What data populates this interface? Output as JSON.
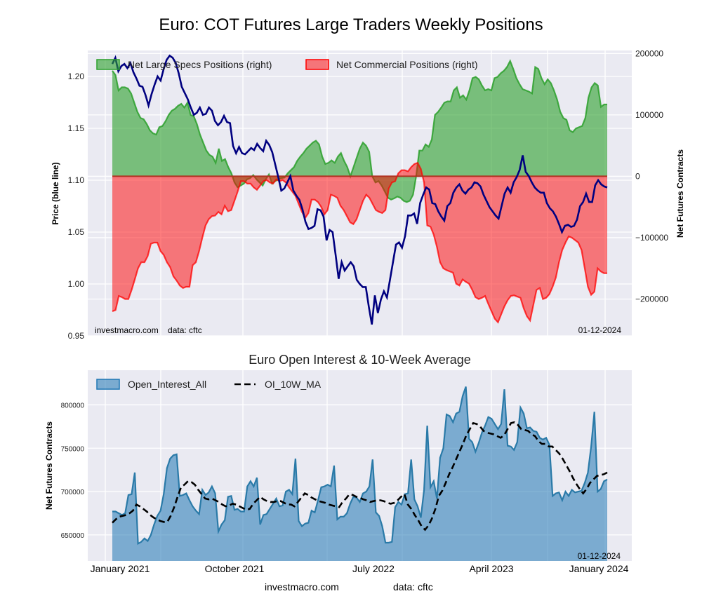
{
  "title": "Euro: COT Futures Large Traders Weekly Positions",
  "subtitle": "Euro Open Interest & 10-Week Average",
  "watermark_top": "investmacro.com    data: cftc",
  "date_top": "01-12-2024",
  "date_bottom": "01-12-2024",
  "footer_site": "investmacro.com",
  "footer_data": "data: cftc",
  "chart_data": [
    {
      "type": "area",
      "title": "Euro: COT Futures Large Traders Weekly Positions",
      "ylabel_left": "Price (blue line)",
      "ylabel_right": "Net Futures Contracts",
      "ylim_left": [
        0.95,
        1.225
      ],
      "ylim_right": [
        -260000,
        205000
      ],
      "yticks_left": [
        "0.95",
        "1.00",
        "1.05",
        "1.10",
        "1.15",
        "1.20"
      ],
      "yticks_right": [
        "−200000",
        "−100000",
        "0",
        "100000",
        "200000"
      ],
      "ytick_values_left": [
        0.95,
        1.0,
        1.05,
        1.1,
        1.15,
        1.2
      ],
      "ytick_values_right": [
        -200000,
        -100000,
        0,
        100000,
        200000
      ],
      "grid": true,
      "legend_position": "top",
      "colors": {
        "specs": "#2ca02c",
        "commercial": "#ff0000",
        "price": "#000080"
      },
      "legend": [
        "Net Large Specs Positions (right)",
        "Net Commercial Positions (right)"
      ],
      "x_start": "2021-01-05",
      "x_end": "2024-01-09",
      "x_step": "weekly",
      "series": [
        {
          "name": "Net Large Specs Positions (right)",
          "axis": "right",
          "values": [
            172000,
            165000,
            140000,
            145000,
            145000,
            143000,
            135000,
            120000,
            105000,
            95000,
            93000,
            85000,
            75000,
            70000,
            68000,
            80000,
            82000,
            90000,
            100000,
            107000,
            110000,
            115000,
            118000,
            112000,
            120000,
            100000,
            98000,
            85000,
            68000,
            55000,
            42000,
            35000,
            32000,
            22000,
            45000,
            25000,
            28000,
            15000,
            5000,
            -10000,
            -18000,
            -15000,
            -12000,
            -5000,
            -3000,
            2000,
            -5000,
            -10000,
            -15000,
            -5000,
            3000,
            -12000,
            -8000,
            -5000,
            -3000,
            -2000,
            5000,
            10000,
            15000,
            25000,
            32000,
            38000,
            45000,
            50000,
            55000,
            58000,
            52000,
            32000,
            20000,
            22000,
            26000,
            22000,
            32000,
            38000,
            25000,
            15000,
            0,
            15000,
            30000,
            45000,
            55000,
            50000,
            40000,
            0,
            -10000,
            -8000,
            -15000,
            -25000,
            -35000,
            -38000,
            -36000,
            -33000,
            -35000,
            -40000,
            -42000,
            -40000,
            -30000,
            0,
            42000,
            42000,
            52000,
            48000,
            60000,
            100000,
            105000,
            112000,
            120000,
            122000,
            122000,
            140000,
            145000,
            128000,
            132000,
            125000,
            140000,
            160000,
            162000,
            158000,
            148000,
            140000,
            142000,
            140000,
            160000,
            162000,
            168000,
            172000,
            178000,
            188000,
            175000,
            160000,
            150000,
            142000,
            140000,
            138000,
            135000,
            178000,
            175000,
            160000,
            150000,
            158000,
            152000,
            140000,
            125000,
            105000,
            95000,
            92000,
            75000,
            72000,
            78000,
            80000,
            82000,
            95000,
            128000,
            145000,
            152000,
            148000,
            113000,
            117000,
            117000
          ]
        },
        {
          "name": "Net Commercial Positions (right)",
          "axis": "right",
          "values": [
            -220000,
            -218000,
            -195000,
            -197000,
            -200000,
            -200000,
            -185000,
            -168000,
            -150000,
            -140000,
            -140000,
            -130000,
            -110000,
            -108000,
            -108000,
            -122000,
            -128000,
            -140000,
            -148000,
            -163000,
            -170000,
            -178000,
            -182000,
            -180000,
            -180000,
            -145000,
            -140000,
            -122000,
            -100000,
            -80000,
            -70000,
            -65000,
            -64000,
            -58000,
            -62000,
            -48000,
            -57000,
            -55000,
            -40000,
            -25000,
            -8000,
            -8000,
            -12000,
            -12000,
            -18000,
            -22000,
            -15000,
            -8000,
            -6000,
            -10000,
            -12000,
            -5000,
            -8000,
            -6000,
            -10000,
            -18000,
            -25000,
            -32000,
            -45000,
            -58000,
            -68000,
            -60000,
            -38000,
            -38000,
            -42000,
            -50000,
            -62000,
            -55000,
            -30000,
            -32000,
            -35000,
            -48000,
            -55000,
            -65000,
            -75000,
            -78000,
            -70000,
            -55000,
            -40000,
            -30000,
            -35000,
            -45000,
            -55000,
            -58000,
            -60000,
            -55000,
            -20000,
            -10000,
            -8000,
            5000,
            10000,
            10000,
            8000,
            15000,
            20000,
            22000,
            12000,
            -10000,
            -80000,
            -82000,
            -95000,
            -115000,
            -140000,
            -150000,
            -153000,
            -155000,
            -157000,
            -175000,
            -178000,
            -168000,
            -172000,
            -175000,
            -185000,
            -197000,
            -200000,
            -198000,
            -195000,
            -208000,
            -220000,
            -232000,
            -238000,
            -225000,
            -212000,
            -202000,
            -195000,
            -194000,
            -196000,
            -198000,
            -215000,
            -228000,
            -235000,
            -210000,
            -185000,
            -182000,
            -200000,
            -198000,
            -192000,
            -180000,
            -165000,
            -140000,
            -120000,
            -108000,
            -98000,
            -100000,
            -104000,
            -108000,
            -120000,
            -150000,
            -180000,
            -193000,
            -188000,
            -150000,
            -155000,
            -158000,
            -158000
          ]
        },
        {
          "name": "Price (blue line)",
          "axis": "left",
          "values": [
            1.212,
            1.218,
            1.205,
            1.21,
            1.212,
            1.208,
            1.213,
            1.204,
            1.198,
            1.191,
            1.19,
            1.182,
            1.172,
            1.183,
            1.192,
            1.2,
            1.196,
            1.207,
            1.216,
            1.22,
            1.218,
            1.213,
            1.203,
            1.19,
            1.184,
            1.178,
            1.17,
            1.163,
            1.165,
            1.17,
            1.163,
            1.164,
            1.17,
            1.167,
            1.157,
            1.153,
            1.156,
            1.162,
            1.156,
            1.155,
            1.133,
            1.126,
            1.132,
            1.126,
            1.125,
            1.128,
            1.131,
            1.129,
            1.135,
            1.131,
            1.128,
            1.138,
            1.134,
            1.127,
            1.115,
            1.103,
            1.09,
            1.092,
            1.098,
            1.104,
            1.09,
            1.085,
            1.081,
            1.072,
            1.06,
            1.053,
            1.054,
            1.056,
            1.072,
            1.071,
            1.065,
            1.042,
            1.052,
            1.05,
            1.028,
            1.005,
            1.021,
            1.013,
            1.017,
            1.021,
            1.017,
            1.004,
            1.0,
            0.997,
            0.997,
            0.978,
            0.961,
            0.989,
            0.972,
            0.985,
            0.993,
            0.987,
            1.004,
            1.021,
            1.038,
            1.04,
            1.035,
            1.046,
            1.066,
            1.066,
            1.068,
            1.058,
            1.078,
            1.086,
            1.093,
            1.091,
            1.078,
            1.077,
            1.07,
            1.065,
            1.061,
            1.075,
            1.078,
            1.088,
            1.093,
            1.096,
            1.09,
            1.087,
            1.091,
            1.093,
            1.098,
            1.097,
            1.094,
            1.086,
            1.08,
            1.074,
            1.07,
            1.066,
            1.063,
            1.075,
            1.087,
            1.093,
            1.088,
            1.098,
            1.103,
            1.11,
            1.124,
            1.108,
            1.104,
            1.098,
            1.093,
            1.09,
            1.088,
            1.088,
            1.078,
            1.073,
            1.07,
            1.065,
            1.058,
            1.05,
            1.056,
            1.057,
            1.055,
            1.056,
            1.062,
            1.075,
            1.079,
            1.087,
            1.079,
            1.079,
            1.095,
            1.1,
            1.096,
            1.094,
            1.093
          ]
        }
      ]
    },
    {
      "type": "area",
      "title": "Euro Open Interest & 10-Week Average",
      "ylabel": "Net Futures Contracts",
      "ylim": [
        620000,
        840000
      ],
      "yticks": [
        "650000",
        "700000",
        "750000",
        "800000"
      ],
      "ytick_values": [
        650000,
        700000,
        750000,
        800000
      ],
      "xticks": [
        "January 2021",
        "October 2021",
        "July 2022",
        "April 2023",
        "January 2024"
      ],
      "grid": true,
      "legend_position": "top-left",
      "legend": [
        "Open_Interest_All",
        "OI_10W_MA"
      ],
      "colors": {
        "oi": "#1f77b4",
        "ma": "#000000"
      },
      "x_start": "2021-01-05",
      "x_end": "2024-01-09",
      "x_step": "weekly",
      "series": [
        {
          "name": "Open_Interest_All",
          "values": [
            677000,
            677000,
            675000,
            673000,
            675000,
            696000,
            697000,
            722000,
            640000,
            642000,
            646000,
            643000,
            650000,
            662000,
            672000,
            678000,
            697000,
            727000,
            738000,
            742000,
            743000,
            695000,
            696000,
            698000,
            690000,
            683000,
            678000,
            674000,
            702000,
            696000,
            699000,
            706000,
            698000,
            654000,
            662000,
            667000,
            694000,
            695000,
            679000,
            680000,
            677000,
            677000,
            706000,
            712000,
            706000,
            716000,
            662000,
            673000,
            674000,
            680000,
            686000,
            692000,
            683000,
            684000,
            700000,
            702000,
            697000,
            738000,
            666000,
            660000,
            663000,
            664000,
            678000,
            676000,
            690000,
            705000,
            706000,
            708000,
            706000,
            730000,
            668000,
            671000,
            671000,
            675000,
            686000,
            694000,
            693000,
            688000,
            698000,
            700000,
            706000,
            737000,
            676000,
            672000,
            660000,
            641000,
            641000,
            642000,
            682000,
            688000,
            685000,
            697000,
            698000,
            737000,
            691000,
            683000,
            670000,
            702000,
            776000,
            705000,
            712000,
            692000,
            739000,
            750000,
            789000,
            787000,
            780000,
            790000,
            792000,
            810000,
            821000,
            761000,
            757000,
            746000,
            756000,
            768000,
            776000,
            786000,
            784000,
            778000,
            772000,
            778000,
            818000,
            753000,
            752000,
            748000,
            757000,
            797000,
            790000,
            773000,
            774000,
            770000,
            769000,
            762000,
            760000,
            762000,
            754000,
            695000,
            698000,
            699000,
            690000,
            700000,
            695000,
            702000,
            699000,
            700000,
            701000,
            710000,
            722000,
            752000,
            792000,
            700000,
            703000,
            712000,
            714000
          ]
        },
        {
          "name": "OI_10W_MA",
          "values": [
            664000,
            668000,
            671000,
            672000,
            673000,
            675000,
            678000,
            685000,
            683000,
            680000,
            677000,
            673000,
            670000,
            668000,
            666000,
            665000,
            665000,
            672000,
            682000,
            694000,
            705000,
            708000,
            712000,
            711000,
            708000,
            702000,
            697000,
            692000,
            691000,
            692000,
            690000,
            688000,
            685000,
            683000,
            684000,
            686000,
            685000,
            683000,
            681000,
            679000,
            680000,
            686000,
            690000,
            694000,
            691000,
            689000,
            688000,
            688000,
            689000,
            689000,
            687000,
            685000,
            685000,
            683000,
            688000,
            693000,
            698000,
            696000,
            693000,
            691000,
            689000,
            688000,
            687000,
            685000,
            684000,
            683000,
            682000,
            688000,
            692000,
            697000,
            696000,
            694000,
            693000,
            691000,
            690000,
            688000,
            689000,
            690000,
            690000,
            689000,
            687000,
            686000,
            687000,
            690000,
            694000,
            697000,
            685000,
            680000,
            673000,
            667000,
            660000,
            656000,
            661000,
            669000,
            680000,
            695000,
            701000,
            710000,
            720000,
            728000,
            737000,
            746000,
            755000,
            765000,
            772000,
            779000,
            778000,
            775000,
            770000,
            768000,
            767000,
            766000,
            764000,
            762000,
            765000,
            772000,
            779000,
            780000,
            777000,
            772000,
            771000,
            770000,
            766000,
            764000,
            758000,
            755000,
            755000,
            752000,
            752000,
            748000,
            744000,
            738000,
            731000,
            724000,
            716000,
            709000,
            703000,
            698000,
            703000,
            710000,
            714000,
            718000,
            719000,
            720000,
            722000
          ]
        }
      ]
    }
  ]
}
